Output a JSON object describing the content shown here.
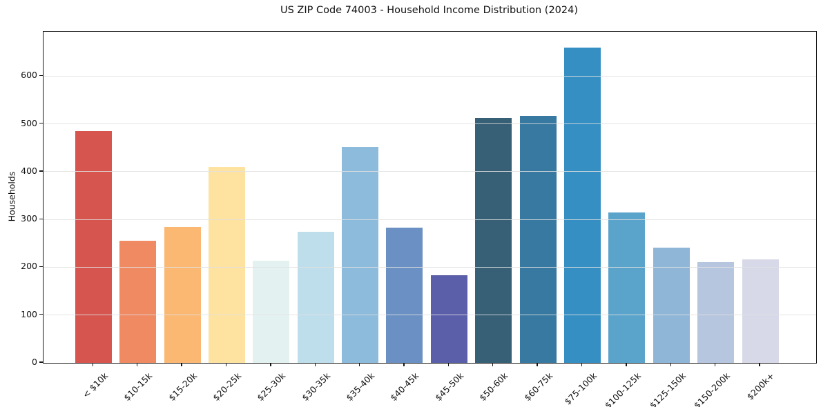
{
  "chart_data": {
    "type": "bar",
    "title": "US ZIP Code 74003 - Household Income Distribution (2024)",
    "xlabel": "",
    "ylabel": "Households",
    "categories": [
      "< $10k",
      "$10-15k",
      "$15-20k",
      "$20-25k",
      "$25-30k",
      "$30-35k",
      "$35-40k",
      "$40-45k",
      "$45-50k",
      "$50-60k",
      "$60-75k",
      "$75-100k",
      "$100-125k",
      "$125-150k",
      "$150-200k",
      "$200k+"
    ],
    "values": [
      485,
      255,
      285,
      410,
      214,
      275,
      452,
      283,
      184,
      513,
      517,
      660,
      315,
      241,
      211,
      216
    ],
    "bar_colors": [
      "#d6564f",
      "#f08a63",
      "#fab873",
      "#fde2a0",
      "#e3f2f1",
      "#bfdeeb",
      "#8dbbdb",
      "#6b90c4",
      "#5b5ea9",
      "#375f76",
      "#3779a0",
      "#358fc3",
      "#5aa4cb",
      "#90b6d7",
      "#b7c6df",
      "#d7d9e8"
    ],
    "ylim": [
      0,
      693
    ],
    "yticks": [
      0,
      100,
      200,
      300,
      400,
      500,
      600
    ],
    "grid": "horizontal",
    "legend": "none",
    "background": "#ffffff",
    "grid_color": "#e0e0e0",
    "axis_color": "#161616",
    "text_color": "#111111"
  }
}
